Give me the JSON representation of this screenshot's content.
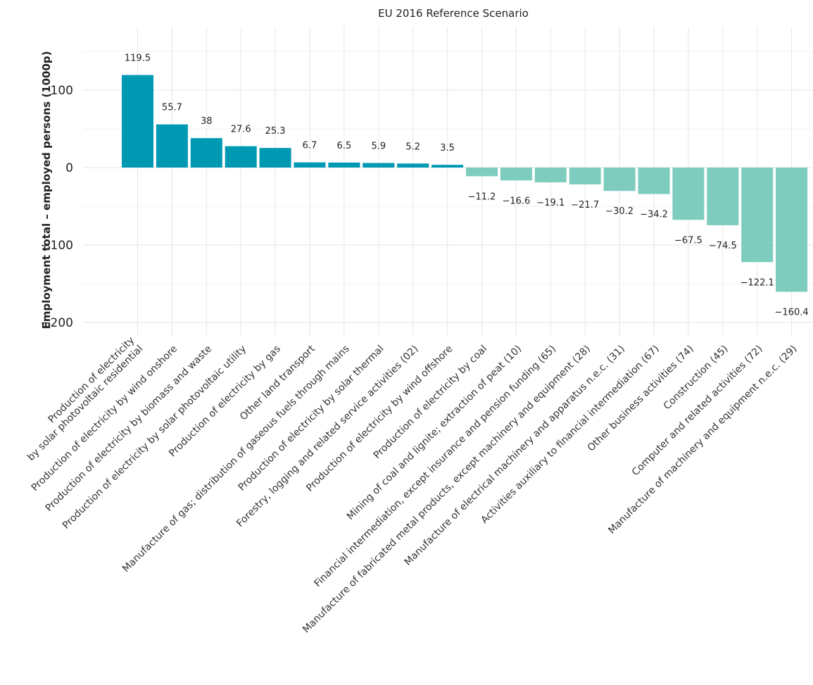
{
  "chart_data": {
    "type": "bar",
    "title": "EU 2016 Reference Scenario",
    "xlabel": "",
    "ylabel": "Employment total – employed persons (1000p)",
    "ylim": [
      -220,
      165
    ],
    "yticks": [
      100,
      0,
      -100,
      -200
    ],
    "ytick_labels": [
      "100",
      "0",
      "−100",
      "−200"
    ],
    "grid": true,
    "legend": "none",
    "colors": {
      "positive": "#0099b4",
      "negative": "#7dccbe"
    },
    "categories": [
      [
        "Production of electricity",
        "by solar photovoltaic residential"
      ],
      [
        "Production of electricity by wind onshore"
      ],
      [
        "Production of electricity by biomass and waste"
      ],
      [
        "Production of electricity by solar photovoltaic utility"
      ],
      [
        "Production of electricity by gas"
      ],
      [
        "Other land transport"
      ],
      [
        "Manufacture of gas; distribution of gaseous fuels through mains"
      ],
      [
        "Production of electricity by solar thermal"
      ],
      [
        "Forestry, logging and related service activities (02)"
      ],
      [
        "Production of electricity by wind offshore"
      ],
      [
        "Production of electricity by coal"
      ],
      [
        "Mining of coal and lignite; extraction of peat (10)"
      ],
      [
        "Financial intermediation, except insurance and pension funding (65)"
      ],
      [
        "Manufacture of fabricated metal products, except machinery and equipment (28)"
      ],
      [
        "Manufacture of electrical machinery and apparatus n.e.c. (31)"
      ],
      [
        "Activities auxiliary to financial intermediation (67)"
      ],
      [
        "Other business activities (74)"
      ],
      [
        "Construction (45)"
      ],
      [
        "Computer and related activities (72)"
      ],
      [
        "Manufacture of machinery and equipment n.e.c. (29)"
      ]
    ],
    "values": [
      119.5,
      55.7,
      38,
      27.6,
      25.3,
      6.7,
      6.5,
      5.9,
      5.2,
      3.5,
      -11.2,
      -16.6,
      -19.1,
      -21.7,
      -30.2,
      -34.2,
      -67.5,
      -74.5,
      -122.1,
      -160.4
    ],
    "value_labels": [
      "119.5",
      "55.7",
      "38",
      "27.6",
      "25.3",
      "6.7",
      "6.5",
      "5.9",
      "5.2",
      "3.5",
      "−11.2",
      "−16.6",
      "−19.1",
      "−21.7",
      "−30.2",
      "−34.2",
      "−67.5",
      "−74.5",
      "−122.1",
      "−160.4"
    ]
  }
}
